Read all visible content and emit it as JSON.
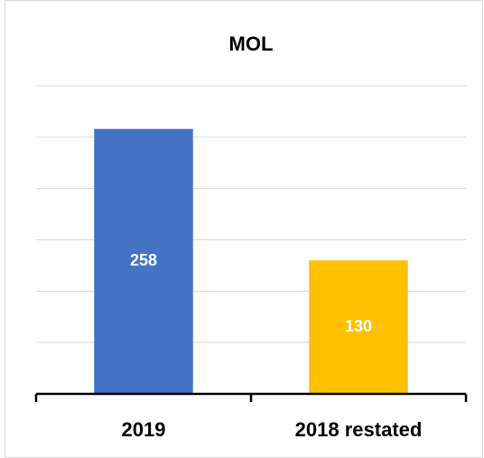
{
  "chart_data": {
    "type": "bar",
    "title": "MOL",
    "categories": [
      "2019",
      "2018 restated"
    ],
    "values": [
      258,
      130
    ],
    "colors": [
      "#4472c4",
      "#ffc000"
    ],
    "ylim": [
      0,
      300
    ],
    "yticks": [
      0,
      50,
      100,
      150,
      200,
      250,
      300
    ],
    "grid": true
  }
}
